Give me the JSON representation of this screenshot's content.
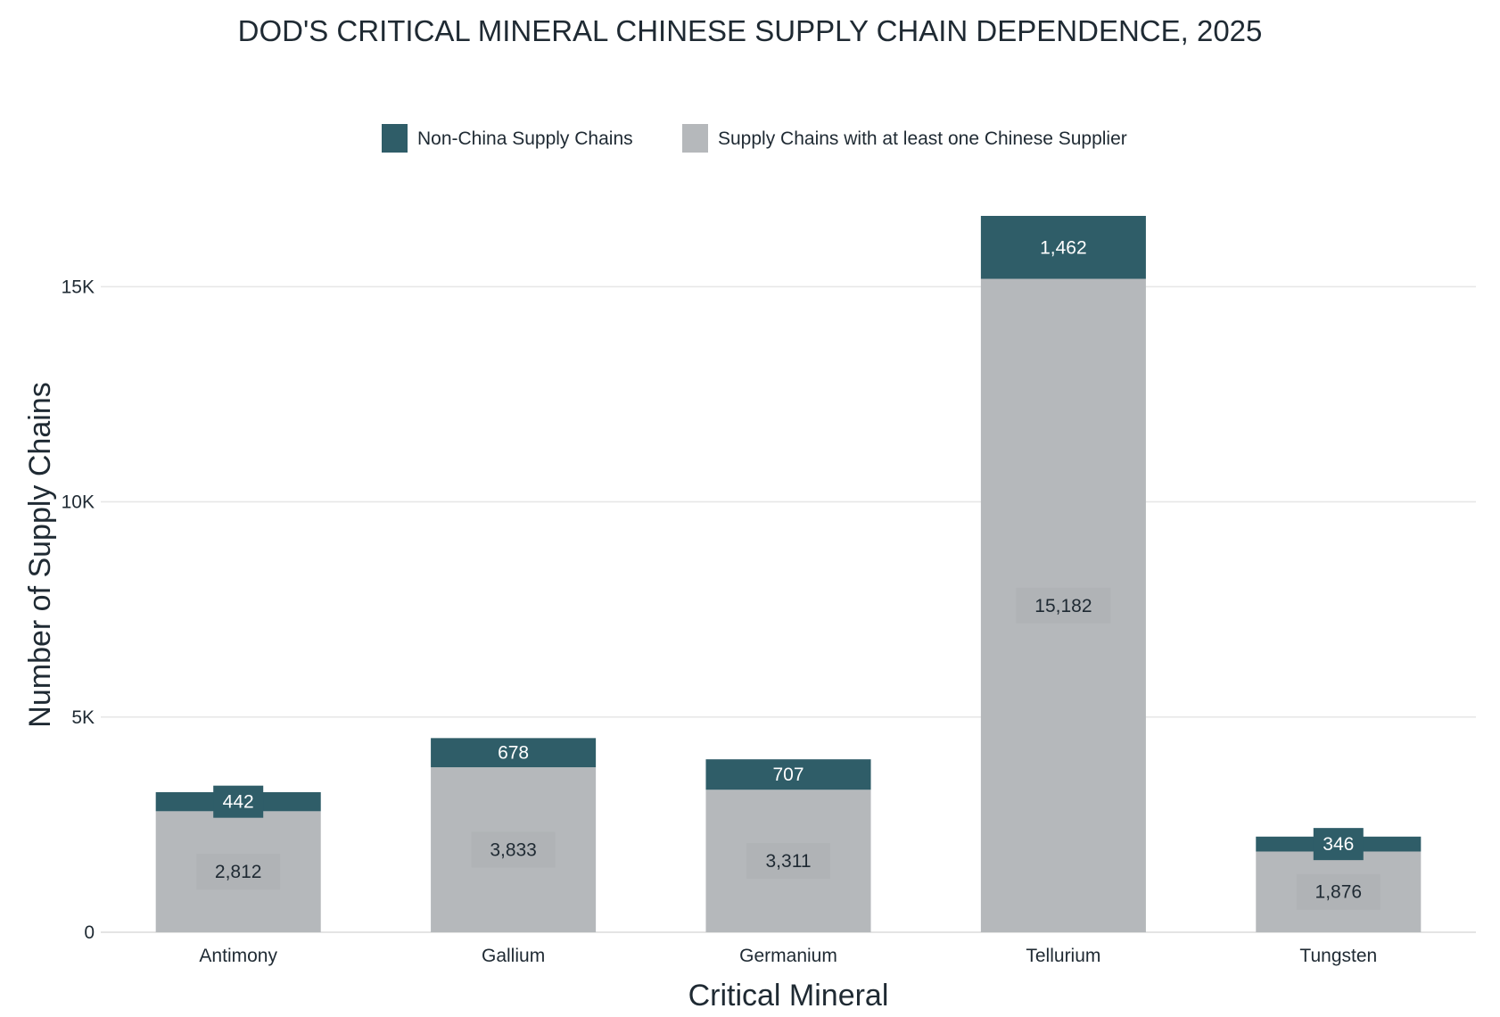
{
  "chart_data": {
    "type": "bar",
    "stacked": true,
    "title": "DOD'S CRITICAL MINERAL CHINESE SUPPLY CHAIN DEPENDENCE, 2025",
    "xlabel": "Critical Mineral",
    "ylabel": "Number of Supply Chains",
    "ylim": [
      0,
      16644
    ],
    "yticks": [
      0,
      5000,
      10000,
      15000
    ],
    "ytick_labels": [
      "0",
      "5K",
      "10K",
      "15K"
    ],
    "grid": true,
    "legend_position": "top-center",
    "categories": [
      "Antimony",
      "Gallium",
      "Germanium",
      "Tellurium",
      "Tungsten"
    ],
    "series": [
      {
        "name": "Supply Chains with at least one Chinese Supplier",
        "color": "#b5b8bb",
        "values": [
          2812,
          3833,
          3311,
          15182,
          1876
        ],
        "labels": [
          "2,812",
          "3,833",
          "3,311",
          "15,182",
          "1,876"
        ]
      },
      {
        "name": "Non-China Supply Chains",
        "color": "#2f5d68",
        "values": [
          442,
          678,
          707,
          1462,
          346
        ],
        "labels": [
          "442",
          "678",
          "707",
          "1,462",
          "346"
        ]
      }
    ],
    "legend_order": [
      1,
      0
    ]
  }
}
